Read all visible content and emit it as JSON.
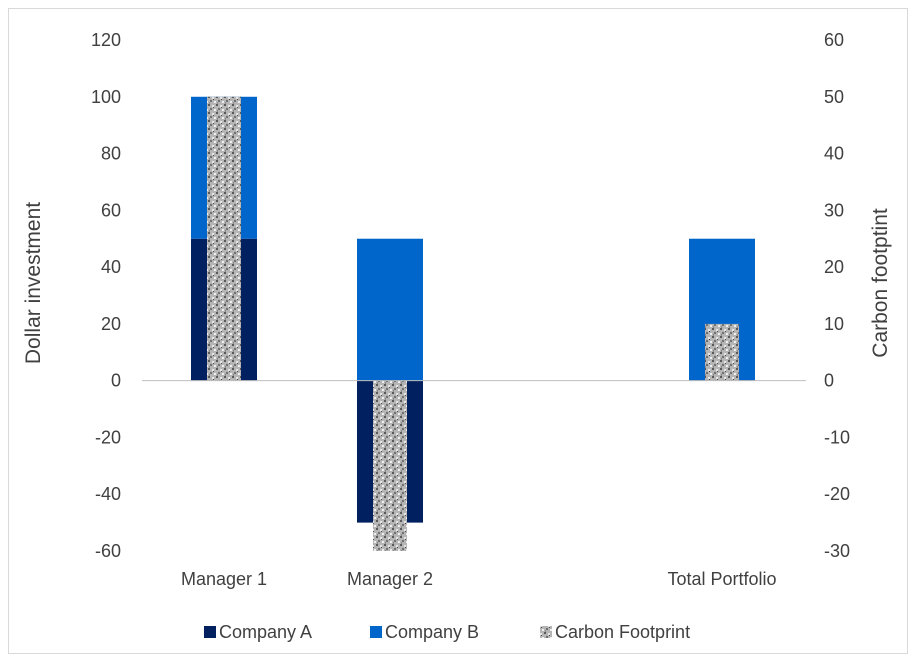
{
  "chart_data": {
    "type": "bar",
    "categories": [
      "Manager 1",
      "Manager 2",
      "",
      "Total Portfolio"
    ],
    "series": [
      {
        "name": "Company A",
        "axis": "left",
        "values": [
          50,
          -50,
          null,
          0
        ],
        "color": "#002060"
      },
      {
        "name": "Company B",
        "axis": "left",
        "values": [
          50,
          50,
          null,
          50
        ],
        "color": "#0066CC"
      },
      {
        "name": "Carbon Footprint",
        "axis": "right",
        "values": [
          50,
          -30,
          null,
          10
        ],
        "color": "#9a9a9a",
        "pattern": "speckled-texture"
      }
    ],
    "left_axis": {
      "label": "Dollar investment",
      "min": -60,
      "max": 120,
      "step": 20
    },
    "right_axis": {
      "label": "Carbon footptint",
      "min": -30,
      "max": 60,
      "step": 10
    },
    "legend": {
      "position": "bottom",
      "entries": [
        "Company A",
        "Company B",
        "Carbon Footprint"
      ]
    },
    "grid": false
  }
}
